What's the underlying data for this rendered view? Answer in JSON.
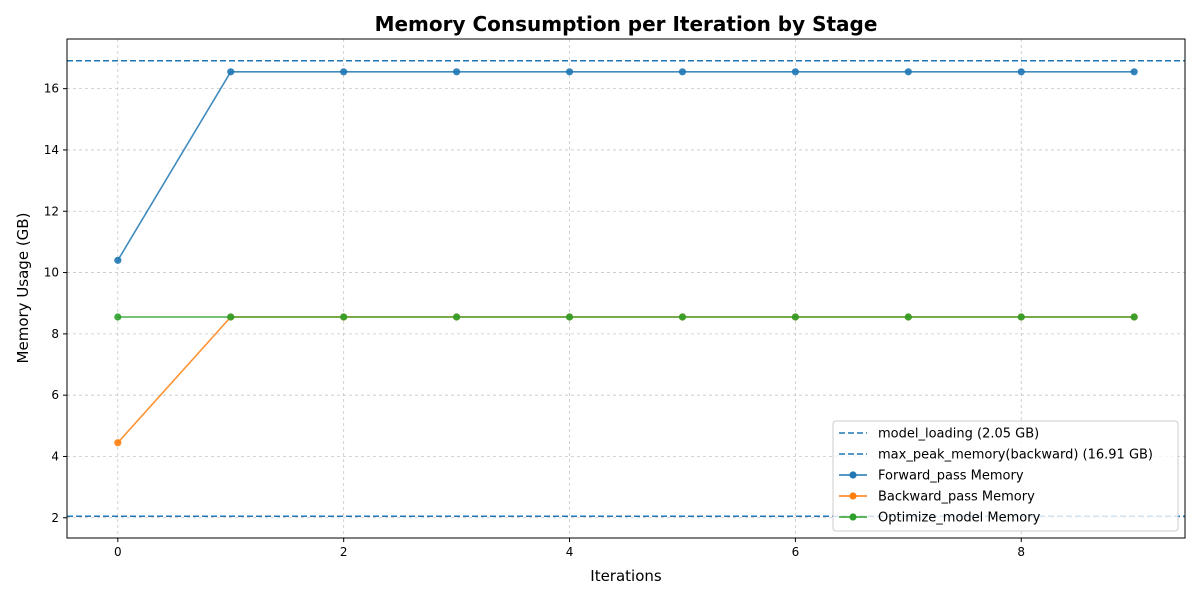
{
  "chart_data": {
    "type": "line",
    "title": "Memory Consumption per Iteration by Stage",
    "xlabel": "Iterations",
    "ylabel": "Memory Usage (GB)",
    "xlim": [
      -0.45,
      9.45
    ],
    "ylim": [
      1.34,
      17.62
    ],
    "xticks": [
      0,
      2,
      4,
      6,
      8
    ],
    "yticks": [
      2,
      4,
      6,
      8,
      10,
      12,
      14,
      16
    ],
    "grid": true,
    "legend_position": "lower-right",
    "x": [
      0,
      1,
      2,
      3,
      4,
      5,
      6,
      7,
      8,
      9
    ],
    "reference_lines": [
      {
        "label": "model_loading (2.05 GB)",
        "y": 2.05,
        "color": "#1f77b4",
        "style": "dashed"
      },
      {
        "label": "max_peak_memory(backward) (16.91 GB)",
        "y": 16.91,
        "color": "#1f77b4",
        "style": "dashed"
      }
    ],
    "series": [
      {
        "name": "Forward_pass Memory",
        "color": "#1f77b4",
        "values": [
          10.4,
          16.55,
          16.55,
          16.55,
          16.55,
          16.55,
          16.55,
          16.55,
          16.55,
          16.55
        ]
      },
      {
        "name": "Backward_pass Memory",
        "color": "#ff7f0e",
        "values": [
          4.45,
          8.55,
          8.55,
          8.55,
          8.55,
          8.55,
          8.55,
          8.55,
          8.55,
          8.55
        ]
      },
      {
        "name": "Optimize_model Memory",
        "color": "#2ca02c",
        "values": [
          8.55,
          8.55,
          8.55,
          8.55,
          8.55,
          8.55,
          8.55,
          8.55,
          8.55,
          8.55
        ]
      }
    ]
  }
}
